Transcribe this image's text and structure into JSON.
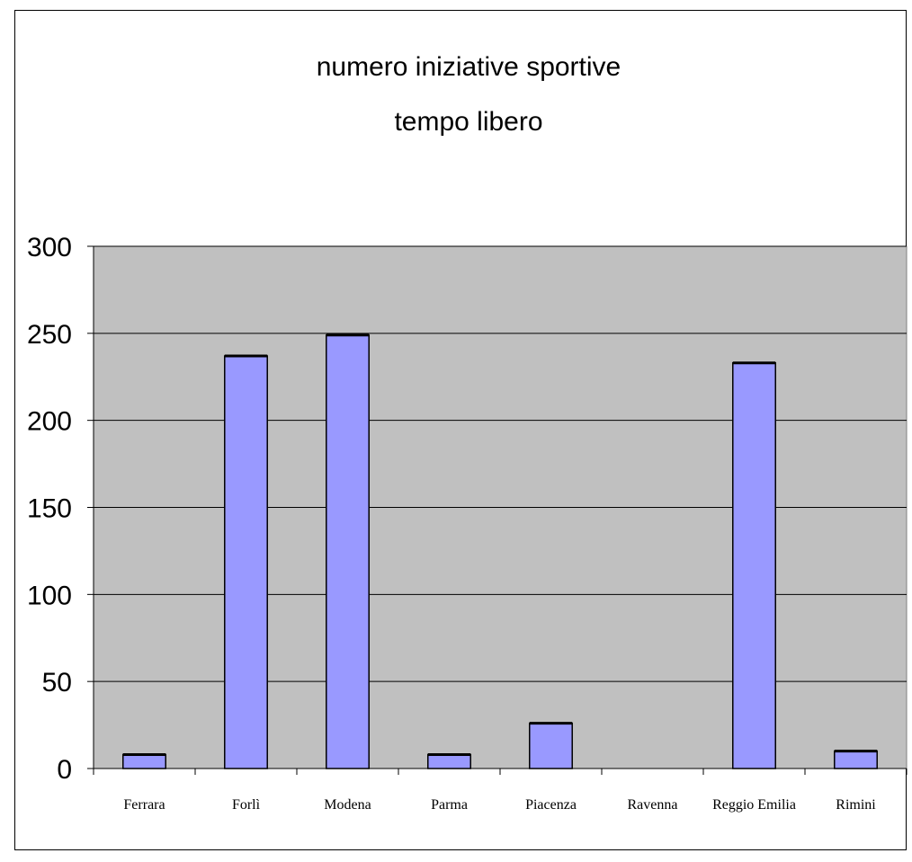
{
  "chart_data": {
    "type": "bar",
    "title": [
      "numero iniziative sportive",
      "tempo libero"
    ],
    "categories": [
      "Ferrara",
      "Forlì",
      "Modena",
      "Parma",
      "Piacenza",
      "Ravenna",
      "Reggio Emilia",
      "Rimini"
    ],
    "values": [
      8,
      237,
      249,
      8,
      26,
      0,
      233,
      10
    ],
    "xlabel": "",
    "ylabel": "",
    "ylim": [
      0,
      300
    ],
    "yticks": [
      0,
      50,
      100,
      150,
      200,
      250,
      300
    ],
    "grid": true,
    "legend": "none",
    "colors": {
      "bar_fill": "#9999ff",
      "bar_stroke": "#000000",
      "plot_background": "#c0c0c0",
      "gridline": "#000000"
    }
  }
}
